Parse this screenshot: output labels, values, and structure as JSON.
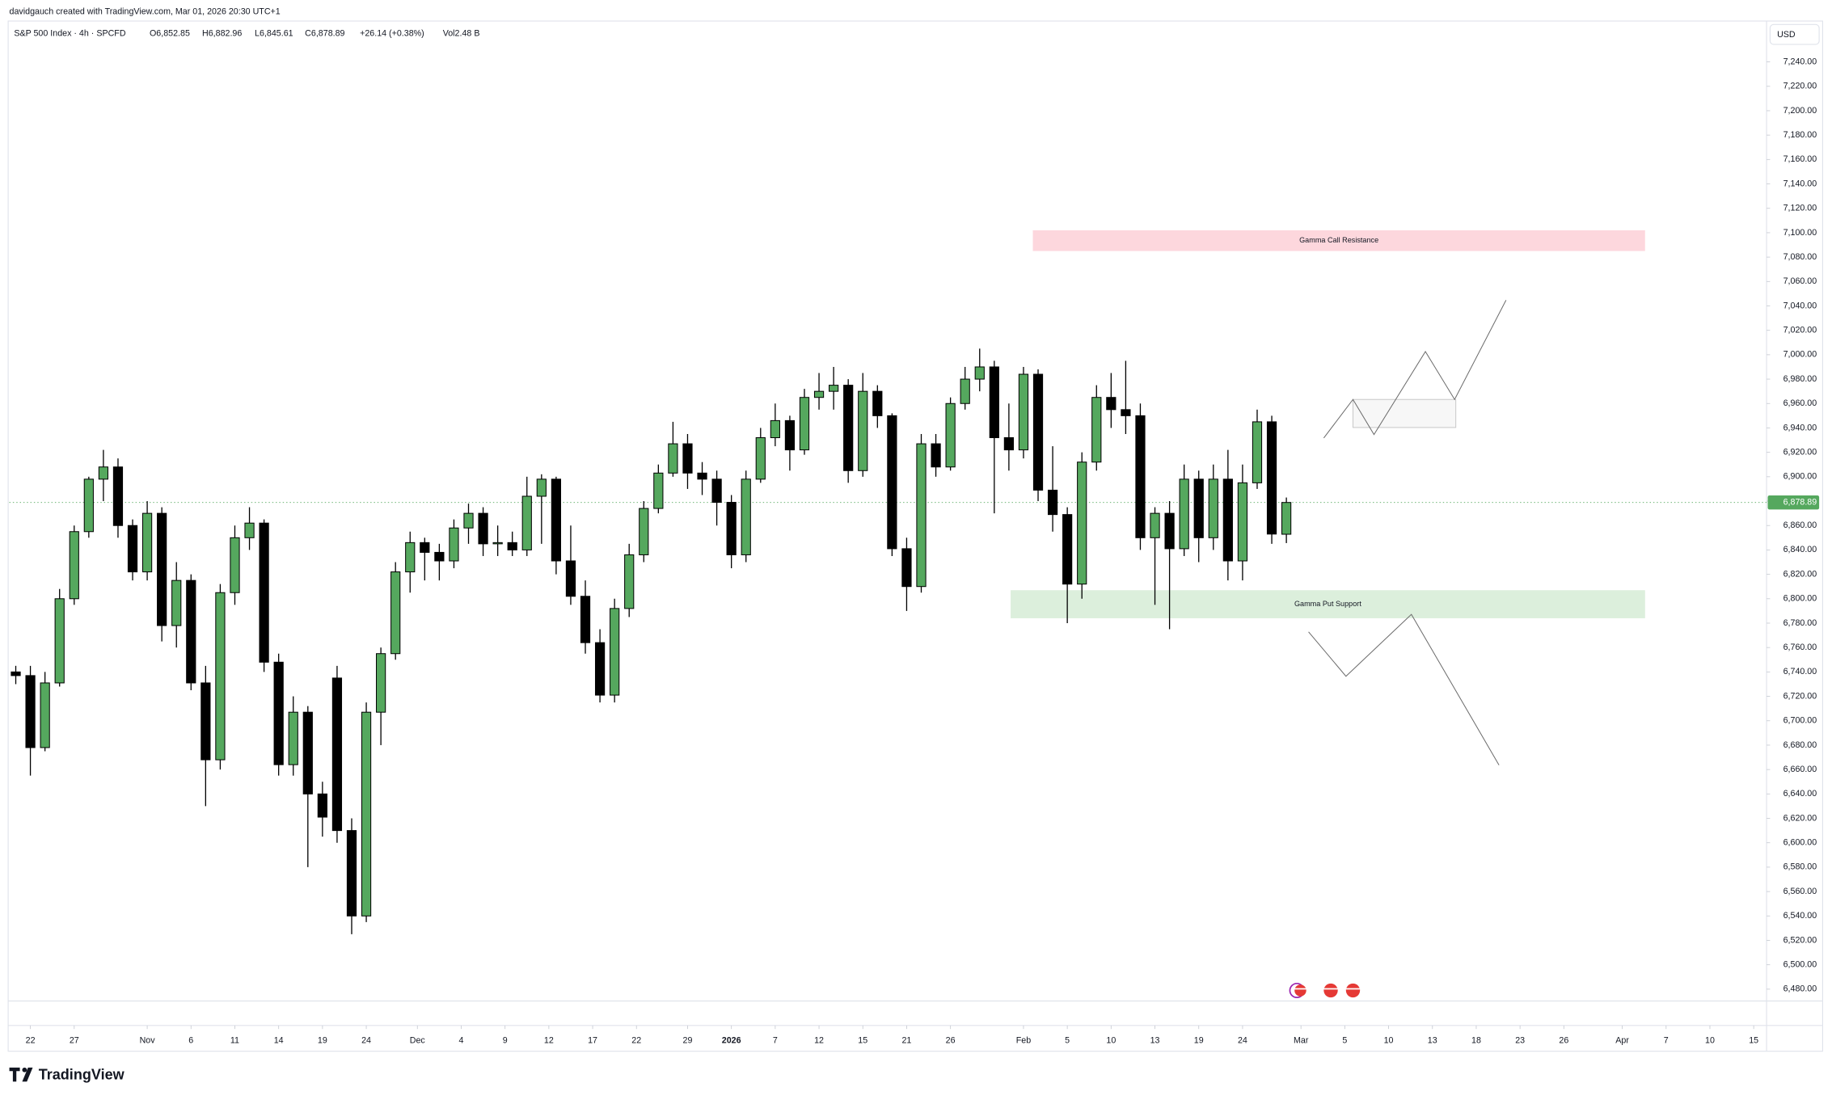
{
  "header": {
    "credit": "davidgauch created with TradingView.com, Mar 01, 2026 20:30 UTC+1",
    "symbol": "S&P 500 Index · 4h · SPCFD",
    "ohlc": [
      "O6,852.85",
      "H6,882.96",
      "L6,845.61",
      "C6,878.89",
      "+26.14 (+0.38%)"
    ],
    "volume": "Vol2.48 B",
    "currency": "USD"
  },
  "footer": {
    "brand": "TradingView"
  },
  "chart_data": {
    "type": "candlestick",
    "x": [
      1,
      2,
      3,
      4,
      5,
      6,
      7,
      8,
      9,
      10,
      11,
      12,
      13,
      14,
      15,
      16,
      17,
      18,
      19,
      20,
      21,
      22,
      23,
      24,
      25,
      26,
      27,
      28,
      29,
      30,
      31,
      32,
      33,
      34,
      35,
      36,
      37,
      38,
      39,
      40,
      41,
      42,
      43,
      44,
      45,
      46,
      47,
      48,
      49,
      50,
      51,
      52,
      53,
      54,
      55,
      56,
      57,
      58,
      59,
      60,
      61,
      62,
      63,
      64,
      65,
      66,
      67,
      68,
      69,
      70,
      71,
      72,
      73,
      74,
      75,
      76,
      77,
      78,
      79,
      80,
      81,
      82,
      83,
      84,
      85,
      86,
      87,
      88
    ],
    "open": [
      6740,
      6737,
      6678,
      6731,
      6800,
      6855,
      6898,
      6908,
      6860,
      6822,
      6870,
      6778,
      6815,
      6731,
      6668,
      6805,
      6850,
      6862,
      6748,
      6664,
      6707,
      6640,
      6735,
      6610,
      6540,
      6707,
      6755,
      6822,
      6846,
      6838,
      6831,
      6858,
      6870,
      6845,
      6846,
      6840,
      6884,
      6898,
      6831,
      6802,
      6764,
      6721,
      6792,
      6836,
      6874,
      6903,
      6927,
      6903,
      6898,
      6879,
      6836,
      6898,
      6932,
      6946,
      6922,
      6965,
      6970,
      6975,
      6905,
      6970,
      6950,
      6841,
      6810,
      6927,
      6908,
      6960,
      6980,
      6990,
      6932,
      6922,
      6984,
      6889,
      6869,
      6812,
      6912,
      6965,
      6955,
      6950,
      6850,
      6870,
      6841,
      6898,
      6850,
      6898,
      6831,
      6895,
      6945,
      6852.85
    ],
    "high": [
      6745,
      6745,
      6740,
      6808,
      6860,
      6900,
      6922,
      6915,
      6865,
      6880,
      6875,
      6830,
      6820,
      6745,
      6812,
      6860,
      6875,
      6865,
      6755,
      6720,
      6712,
      6650,
      6745,
      6620,
      6715,
      6760,
      6830,
      6855,
      6850,
      6845,
      6865,
      6878,
      6875,
      6860,
      6855,
      6900,
      6902,
      6900,
      6860,
      6815,
      6775,
      6800,
      6845,
      6880,
      6910,
      6945,
      6935,
      6912,
      6905,
      6885,
      6905,
      6940,
      6960,
      6950,
      6972,
      6985,
      6990,
      6980,
      6985,
      6975,
      6952,
      6850,
      6935,
      6935,
      6965,
      6990,
      7005,
      6995,
      6960,
      6990,
      6988,
      6925,
      6875,
      6920,
      6975,
      6985,
      6995,
      6960,
      6875,
      6880,
      6910,
      6905,
      6910,
      6922,
      6910,
      6955,
      6950,
      6882.96
    ],
    "low": [
      6730,
      6655,
      6675,
      6728,
      6795,
      6850,
      6880,
      6850,
      6815,
      6815,
      6765,
      6760,
      6725,
      6630,
      6660,
      6795,
      6840,
      6740,
      6655,
      6655,
      6580,
      6605,
      6600,
      6525,
      6535,
      6680,
      6750,
      6805,
      6815,
      6815,
      6825,
      6845,
      6835,
      6835,
      6835,
      6835,
      6845,
      6820,
      6795,
      6755,
      6715,
      6715,
      6785,
      6830,
      6870,
      6900,
      6890,
      6885,
      6860,
      6825,
      6830,
      6895,
      6925,
      6905,
      6918,
      6955,
      6955,
      6895,
      6900,
      6940,
      6835,
      6790,
      6805,
      6900,
      6905,
      6955,
      6970,
      6870,
      6905,
      6915,
      6880,
      6855,
      6780,
      6800,
      6905,
      6940,
      6935,
      6840,
      6795,
      6775,
      6835,
      6830,
      6840,
      6815,
      6815,
      6890,
      6845,
      6845.61
    ],
    "close": [
      6737,
      6678,
      6731,
      6800,
      6855,
      6898,
      6908,
      6860,
      6822,
      6870,
      6778,
      6815,
      6731,
      6668,
      6805,
      6850,
      6862,
      6748,
      6664,
      6707,
      6640,
      6621,
      6610,
      6540,
      6707,
      6755,
      6822,
      6846,
      6838,
      6831,
      6858,
      6870,
      6845,
      6846,
      6840,
      6884,
      6898,
      6831,
      6802,
      6764,
      6721,
      6792,
      6836,
      6874,
      6903,
      6927,
      6903,
      6898,
      6879,
      6836,
      6898,
      6932,
      6946,
      6922,
      6965,
      6970,
      6975,
      6905,
      6970,
      6950,
      6841,
      6810,
      6927,
      6908,
      6960,
      6980,
      6990,
      6932,
      6922,
      6984,
      6889,
      6869,
      6812,
      6912,
      6965,
      6955,
      6950,
      6850,
      6870,
      6841,
      6898,
      6850,
      6898,
      6831,
      6895,
      6945,
      6853,
      6878.89
    ],
    "colors": {
      "up": "#55a85e",
      "down": "#000000"
    },
    "last_price": {
      "value": 6878.89,
      "label": "6,878.89",
      "color": "#55a85e"
    },
    "zones": [
      {
        "label": "Gamma Call Resistance",
        "range": [
          7085,
          7102
        ],
        "xrange": [
          70.64,
          112.56
        ],
        "color": "#fdd7dd"
      },
      {
        "label": "Gamma Put Support",
        "range": [
          6784,
          6807
        ],
        "xrange": [
          69.12,
          112.56
        ],
        "color": "#dcefdc"
      }
    ],
    "xlim": [
      0.56,
      120.88
    ],
    "ylim": [
      6470.3,
      7273.5
    ],
    "grid": false,
    "xticks": [
      {
        "value": 2,
        "label": "22"
      },
      {
        "value": 5,
        "label": "27"
      },
      {
        "value": 10,
        "label": "Nov"
      },
      {
        "value": 13,
        "label": "6"
      },
      {
        "value": 16,
        "label": "11"
      },
      {
        "value": 19,
        "label": "14"
      },
      {
        "value": 22,
        "label": "19"
      },
      {
        "value": 25,
        "label": "24"
      },
      {
        "value": 28.5,
        "label": "Dec"
      },
      {
        "value": 31.5,
        "label": "4"
      },
      {
        "value": 34.5,
        "label": "9"
      },
      {
        "value": 37.5,
        "label": "12"
      },
      {
        "value": 40.5,
        "label": "17"
      },
      {
        "value": 43.5,
        "label": "22"
      },
      {
        "value": 47,
        "label": "29"
      },
      {
        "value": 50,
        "label": "2026"
      },
      {
        "value": 53,
        "label": "7"
      },
      {
        "value": 56,
        "label": "12"
      },
      {
        "value": 59,
        "label": "15"
      },
      {
        "value": 62,
        "label": "21"
      },
      {
        "value": 65,
        "label": "26"
      },
      {
        "value": 70,
        "label": "Feb"
      },
      {
        "value": 73,
        "label": "5"
      },
      {
        "value": 76,
        "label": "10"
      },
      {
        "value": 79,
        "label": "13"
      },
      {
        "value": 82,
        "label": "19"
      },
      {
        "value": 85,
        "label": "24"
      },
      {
        "value": 89,
        "label": "Mar"
      },
      {
        "value": 92,
        "label": "5"
      },
      {
        "value": 95,
        "label": "10"
      },
      {
        "value": 98,
        "label": "13"
      },
      {
        "value": 101,
        "label": "18"
      },
      {
        "value": 104,
        "label": "23"
      },
      {
        "value": 107,
        "label": "26"
      },
      {
        "value": 111,
        "label": "Apr"
      },
      {
        "value": 114,
        "label": "7"
      },
      {
        "value": 117,
        "label": "10"
      },
      {
        "value": 120,
        "label": "15"
      }
    ],
    "yticks": [
      {
        "value": 6480,
        "label": "6,480.00"
      },
      {
        "value": 6500,
        "label": "6,500.00"
      },
      {
        "value": 6520,
        "label": "6,520.00"
      },
      {
        "value": 6540,
        "label": "6,540.00"
      },
      {
        "value": 6560,
        "label": "6,560.00"
      },
      {
        "value": 6580,
        "label": "6,580.00"
      },
      {
        "value": 6600,
        "label": "6,600.00"
      },
      {
        "value": 6620,
        "label": "6,620.00"
      },
      {
        "value": 6640,
        "label": "6,640.00"
      },
      {
        "value": 6660,
        "label": "6,660.00"
      },
      {
        "value": 6680,
        "label": "6,680.00"
      },
      {
        "value": 6700,
        "label": "6,700.00"
      },
      {
        "value": 6720,
        "label": "6,720.00"
      },
      {
        "value": 6740,
        "label": "6,740.00"
      },
      {
        "value": 6760,
        "label": "6,760.00"
      },
      {
        "value": 6780,
        "label": "6,780.00"
      },
      {
        "value": 6800,
        "label": "6,800.00"
      },
      {
        "value": 6820,
        "label": "6,820.00"
      },
      {
        "value": 6840,
        "label": "6,840.00"
      },
      {
        "value": 6860,
        "label": "6,860.00"
      },
      {
        "value": 6880,
        "label": "6,880.00"
      },
      {
        "value": 6900,
        "label": "6,900.00"
      },
      {
        "value": 6920,
        "label": "6,920.00"
      },
      {
        "value": 6940,
        "label": "6,940.00"
      },
      {
        "value": 6960,
        "label": "6,960.00"
      },
      {
        "value": 6980,
        "label": "6,980.00"
      },
      {
        "value": 7000,
        "label": "7,000.00"
      },
      {
        "value": 7020,
        "label": "7,020.00"
      },
      {
        "value": 7040,
        "label": "7,040.00"
      },
      {
        "value": 7060,
        "label": "7,060.00"
      },
      {
        "value": 7080,
        "label": "7,080.00"
      },
      {
        "value": 7100,
        "label": "7,100.00"
      },
      {
        "value": 7120,
        "label": "7,120.00"
      },
      {
        "value": 7140,
        "label": "7,140.00"
      },
      {
        "value": 7160,
        "label": "7,160.00"
      },
      {
        "value": 7180,
        "label": "7,180.00"
      },
      {
        "value": 7200,
        "label": "7,200.00"
      },
      {
        "value": 7220,
        "label": "7,220.00"
      },
      {
        "value": 7240,
        "label": "7,240.00"
      }
    ]
  }
}
